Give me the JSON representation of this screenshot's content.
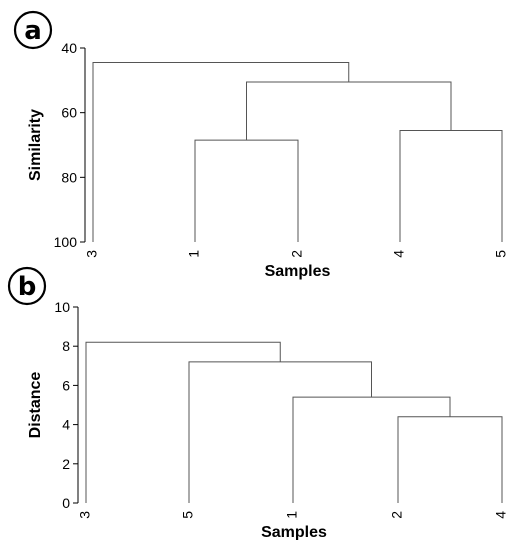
{
  "colors": {
    "line": "#555555",
    "axis": "#000000"
  },
  "chart_data": [
    {
      "type": "dendrogram",
      "panel_label": "a",
      "ylabel": "Similarity",
      "xlabel": "Samples",
      "ylim": [
        40,
        100
      ],
      "y_inverted": true,
      "yticks": [
        40,
        60,
        80,
        100
      ],
      "leaves": [
        "3",
        "1",
        "2",
        "4",
        "5"
      ],
      "merges": [
        {
          "left": "1",
          "right": "2",
          "height": 68.5
        },
        {
          "left": "4",
          "right": "5",
          "height": 65.5
        },
        {
          "left": "1-2",
          "right": "4-5",
          "height": 50.5
        },
        {
          "left": "3",
          "right": "1-2-4-5",
          "height": 44.5
        }
      ]
    },
    {
      "type": "dendrogram",
      "panel_label": "b",
      "ylabel": "Distance",
      "xlabel": "Samples",
      "ylim": [
        0,
        10
      ],
      "y_inverted": false,
      "yticks": [
        0,
        2,
        4,
        6,
        8,
        10
      ],
      "leaves": [
        "3",
        "5",
        "1",
        "2",
        "4"
      ],
      "merges": [
        {
          "left": "2",
          "right": "4",
          "height": 4.4
        },
        {
          "left": "1",
          "right": "2-4",
          "height": 5.4
        },
        {
          "left": "5",
          "right": "1-2-4",
          "height": 7.2
        },
        {
          "left": "3",
          "right": "5-1-2-4",
          "height": 8.2
        }
      ]
    }
  ]
}
